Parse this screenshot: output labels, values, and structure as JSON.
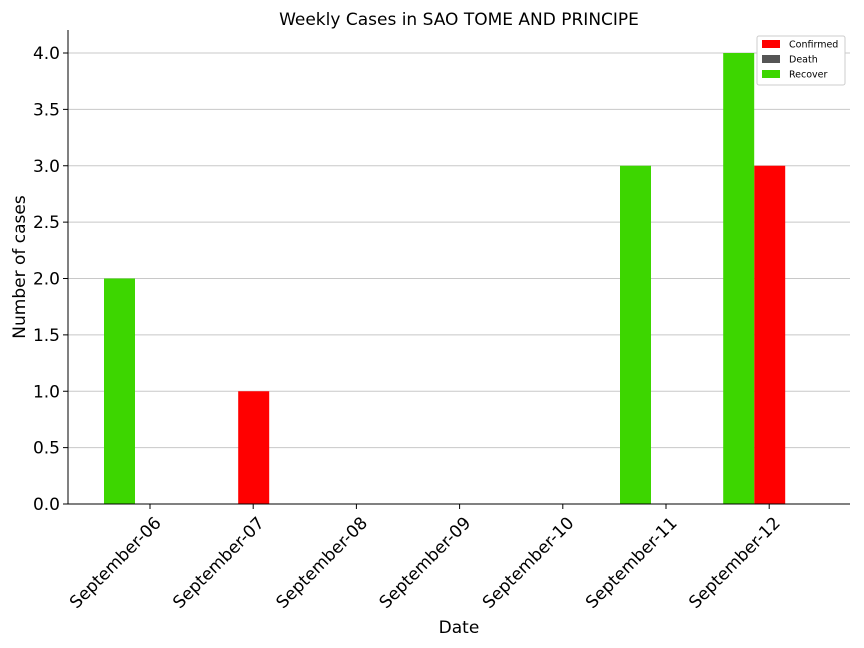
{
  "chart_data": {
    "type": "bar",
    "title": "Weekly Cases in SAO TOME AND PRINCIPE",
    "xlabel": "Date",
    "ylabel": "Number of cases",
    "categories": [
      "September-06",
      "September-07",
      "September-08",
      "September-09",
      "September-10",
      "September-11",
      "September-12"
    ],
    "ylim": [
      0,
      4.2
    ],
    "yticks": [
      "0.0",
      "0.5",
      "1.0",
      "1.5",
      "2.0",
      "2.5",
      "3.0",
      "3.5",
      "4.0"
    ],
    "grid": "horizontal",
    "legend_position": "top-right",
    "series": [
      {
        "name": "Confirmed",
        "color": "#ff0000",
        "values": [
          0,
          1,
          0,
          0,
          0,
          0,
          3
        ]
      },
      {
        "name": "Death",
        "color": "#555555",
        "values": [
          0,
          0,
          0,
          0,
          0,
          0,
          0
        ]
      },
      {
        "name": "Recover",
        "color": "#3dd600",
        "values": [
          2,
          0,
          0,
          0,
          0,
          3,
          4
        ]
      }
    ]
  }
}
